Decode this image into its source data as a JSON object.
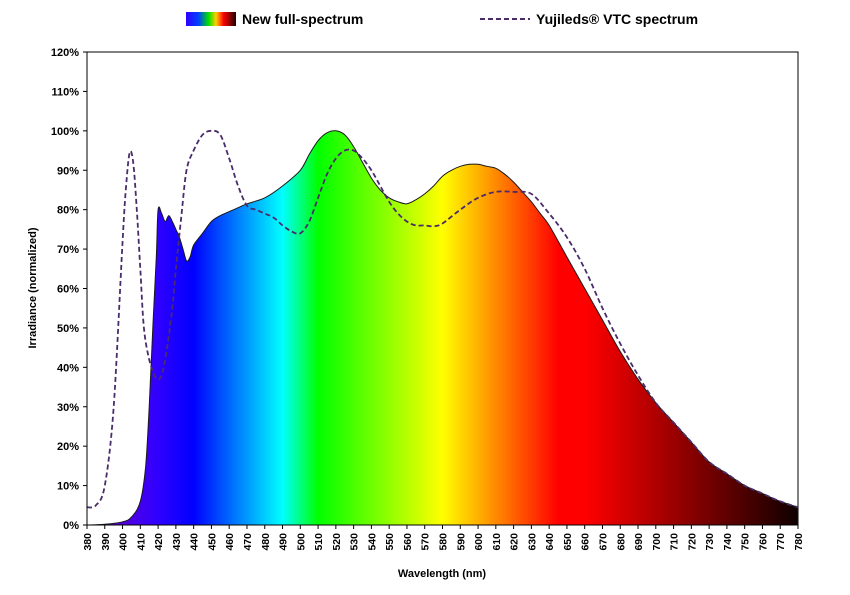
{
  "chart_data": {
    "type": "area",
    "xlabel": "Wavelength (nm)",
    "ylabel": "Irradiance (normalized)",
    "xlim": [
      380,
      780
    ],
    "ylim": [
      0,
      120
    ],
    "xticks": [
      380,
      390,
      400,
      410,
      420,
      430,
      440,
      450,
      460,
      470,
      480,
      490,
      500,
      510,
      520,
      530,
      540,
      550,
      560,
      570,
      580,
      590,
      600,
      610,
      620,
      630,
      640,
      650,
      660,
      670,
      680,
      690,
      700,
      710,
      720,
      730,
      740,
      750,
      760,
      770,
      780
    ],
    "yticks": [
      0,
      10,
      20,
      30,
      40,
      50,
      60,
      70,
      80,
      90,
      100,
      110,
      120
    ],
    "ytick_labels": [
      "0%",
      "10%",
      "20%",
      "30%",
      "40%",
      "50%",
      "60%",
      "70%",
      "80%",
      "90%",
      "100%",
      "110%",
      "120%"
    ],
    "grid": false,
    "legend_position": "top",
    "series": [
      {
        "name": "New full-spectrum",
        "style": "area-spectral-gradient",
        "x": [
          380,
          390,
          400,
          405,
          410,
          413,
          415,
          417,
          419,
          420,
          422,
          424,
          426,
          428,
          430,
          432,
          434,
          436,
          438,
          440,
          445,
          450,
          455,
          460,
          465,
          470,
          480,
          490,
          500,
          505,
          510,
          515,
          520,
          525,
          530,
          535,
          540,
          545,
          550,
          555,
          560,
          565,
          570,
          575,
          580,
          585,
          590,
          595,
          600,
          605,
          610,
          615,
          620,
          625,
          630,
          635,
          640,
          650,
          660,
          670,
          680,
          690,
          700,
          710,
          720,
          730,
          740,
          750,
          760,
          770,
          780
        ],
        "y": [
          0,
          0.2,
          0.8,
          2,
          6,
          15,
          30,
          50,
          68,
          80,
          79,
          77,
          78.5,
          77,
          75,
          73,
          70,
          67,
          68,
          71,
          74,
          77,
          78.5,
          79.5,
          80.5,
          81.5,
          83,
          86,
          90,
          94,
          97.5,
          99.5,
          100,
          99,
          96,
          92,
          88,
          85,
          83,
          82,
          81.5,
          82.5,
          84,
          86,
          88.5,
          90,
          91,
          91.5,
          91.5,
          91,
          90.5,
          89,
          87,
          84.5,
          82,
          79,
          76,
          68,
          60,
          52,
          44,
          37,
          31,
          26,
          21,
          16,
          13,
          10,
          8,
          6,
          4.5
        ]
      },
      {
        "name": "Yujileds® VTC spectrum",
        "style": "dashed",
        "color": "#4a2c6a",
        "x": [
          380,
          385,
          390,
          395,
          400,
          402,
          404,
          406,
          408,
          410,
          412,
          415,
          418,
          420,
          422,
          424,
          426,
          428,
          430,
          433,
          436,
          440,
          445,
          450,
          455,
          460,
          465,
          470,
          475,
          480,
          485,
          490,
          495,
          500,
          505,
          510,
          515,
          520,
          525,
          530,
          535,
          540,
          545,
          550,
          555,
          560,
          565,
          570,
          575,
          580,
          590,
          600,
          610,
          620,
          630,
          640,
          650,
          660,
          670,
          680,
          690,
          700,
          710,
          720,
          730,
          740,
          750,
          760,
          770,
          780
        ],
        "y": [
          4.5,
          5,
          10,
          30,
          72,
          86,
          94.5,
          92,
          80,
          65,
          50,
          42,
          38,
          37,
          38,
          42,
          48,
          55,
          65,
          78,
          90,
          95,
          99,
          100,
          99,
          93,
          86,
          81,
          80,
          79,
          78,
          76,
          74.5,
          74,
          77,
          83,
          89,
          93,
          95,
          95,
          93,
          90,
          86,
          82,
          79,
          77,
          76,
          76,
          75.8,
          76.5,
          80,
          83,
          84.5,
          84.5,
          84,
          79,
          73,
          65,
          55,
          46,
          38,
          31,
          26,
          21,
          16,
          13,
          10,
          8,
          6,
          4.5
        ]
      }
    ]
  }
}
